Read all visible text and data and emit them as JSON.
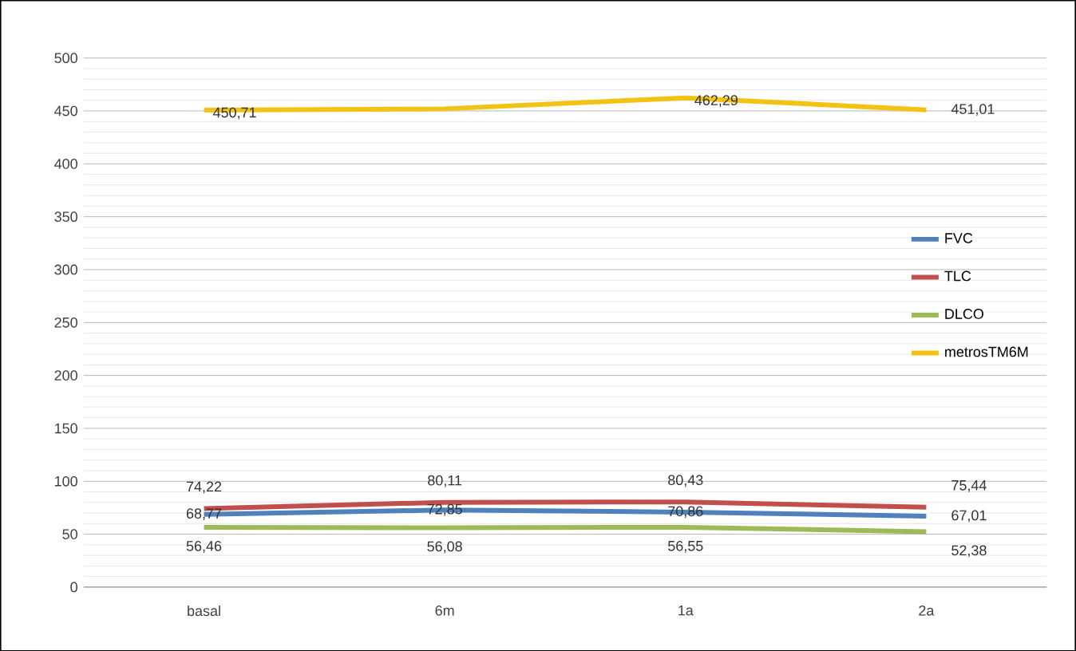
{
  "chart_data": {
    "type": "line",
    "categories": [
      "basal",
      "6m",
      "1a",
      "2a"
    ],
    "series": [
      {
        "name": "FVC",
        "color": "#4f81bd",
        "values": [
          68.77,
          72.85,
          70.86,
          67.01
        ],
        "value_labels": [
          "68,77",
          "72,85",
          "70,86",
          "67,01"
        ]
      },
      {
        "name": "TLC",
        "color": "#c0504d",
        "values": [
          74.22,
          80.11,
          80.43,
          75.44
        ],
        "value_labels": [
          "74,22",
          "80,11",
          "80,43",
          "75,44"
        ]
      },
      {
        "name": "DLCO",
        "color": "#9bbb59",
        "values": [
          56.46,
          56.08,
          56.55,
          52.38
        ],
        "value_labels": [
          "56,46",
          "56,08",
          "56,55",
          "52,38"
        ]
      },
      {
        "name": "metrosTM6M",
        "color": "#f2c314",
        "values": [
          450.71,
          452,
          462.29,
          451.01
        ],
        "value_labels": [
          "450,71",
          null,
          "462,29",
          "451,01"
        ]
      }
    ],
    "ylim": [
      0,
      500
    ],
    "yticks": [
      0,
      50,
      100,
      150,
      200,
      250,
      300,
      350,
      400,
      450,
      500
    ],
    "grid": "y",
    "legend": "right",
    "marker": "none",
    "line_style": "solid"
  }
}
